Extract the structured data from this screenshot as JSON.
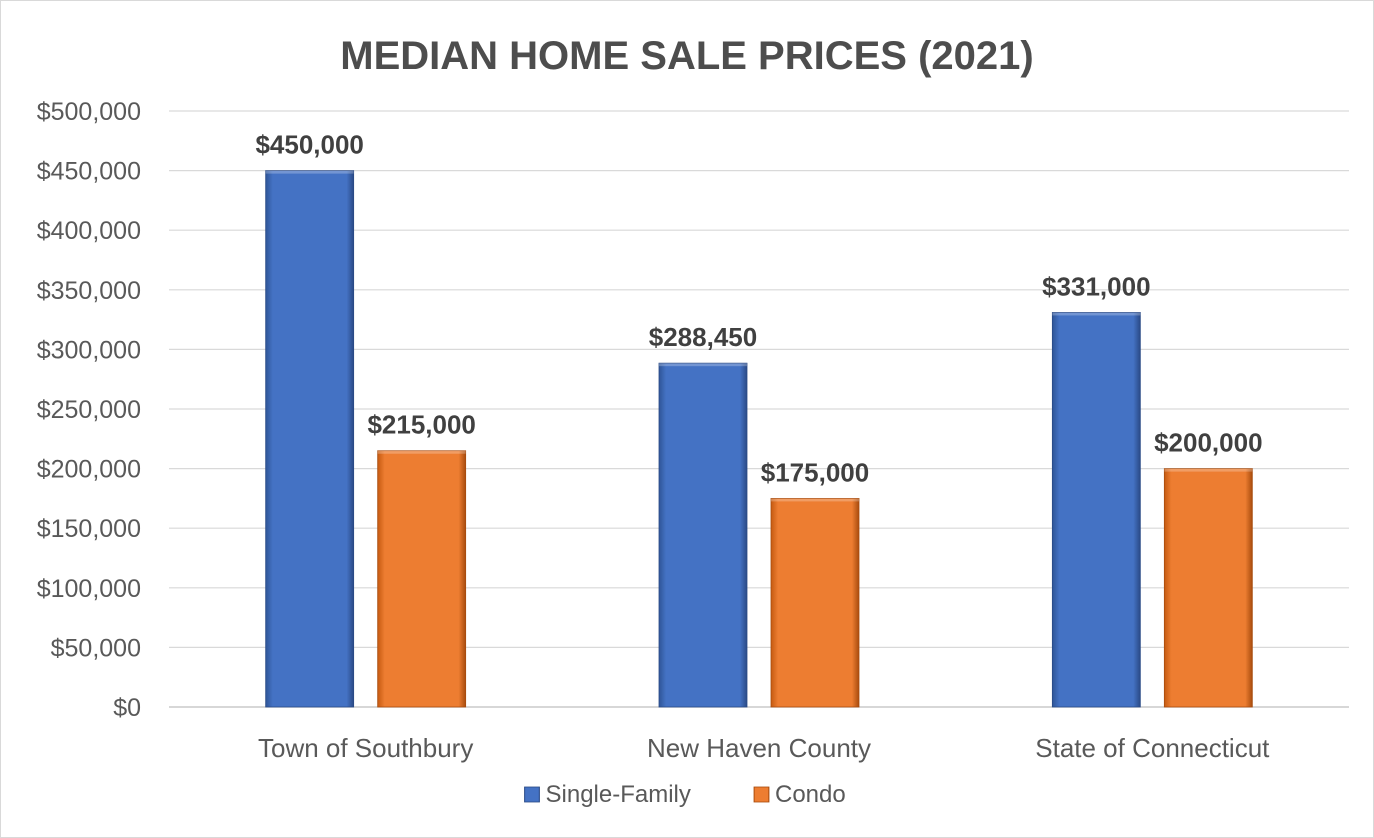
{
  "chart_data": {
    "type": "bar",
    "title": "MEDIAN HOME SALE PRICES (2021)",
    "xlabel": "",
    "ylabel": "",
    "categories": [
      "Town of Southbury",
      "New Haven County",
      "State of Connecticut"
    ],
    "series": [
      {
        "name": "Single-Family",
        "color": "#4472c4",
        "values": [
          450000,
          288450,
          331000
        ],
        "labels": [
          "$450,000",
          "$288,450",
          "$331,000"
        ]
      },
      {
        "name": "Condo",
        "color": "#ed7d31",
        "values": [
          215000,
          175000,
          200000
        ],
        "labels": [
          "$215,000",
          "$175,000",
          "$200,000"
        ]
      }
    ],
    "ylim": [
      0,
      500000
    ],
    "yticks": [
      0,
      50000,
      100000,
      150000,
      200000,
      250000,
      300000,
      350000,
      400000,
      450000,
      500000
    ],
    "ytick_labels": [
      "$0",
      "$50,000",
      "$100,000",
      "$150,000",
      "$200,000",
      "$250,000",
      "$300,000",
      "$350,000",
      "$400,000",
      "$450,000",
      "$500,000"
    ],
    "grid": true,
    "legend_position": "bottom"
  }
}
